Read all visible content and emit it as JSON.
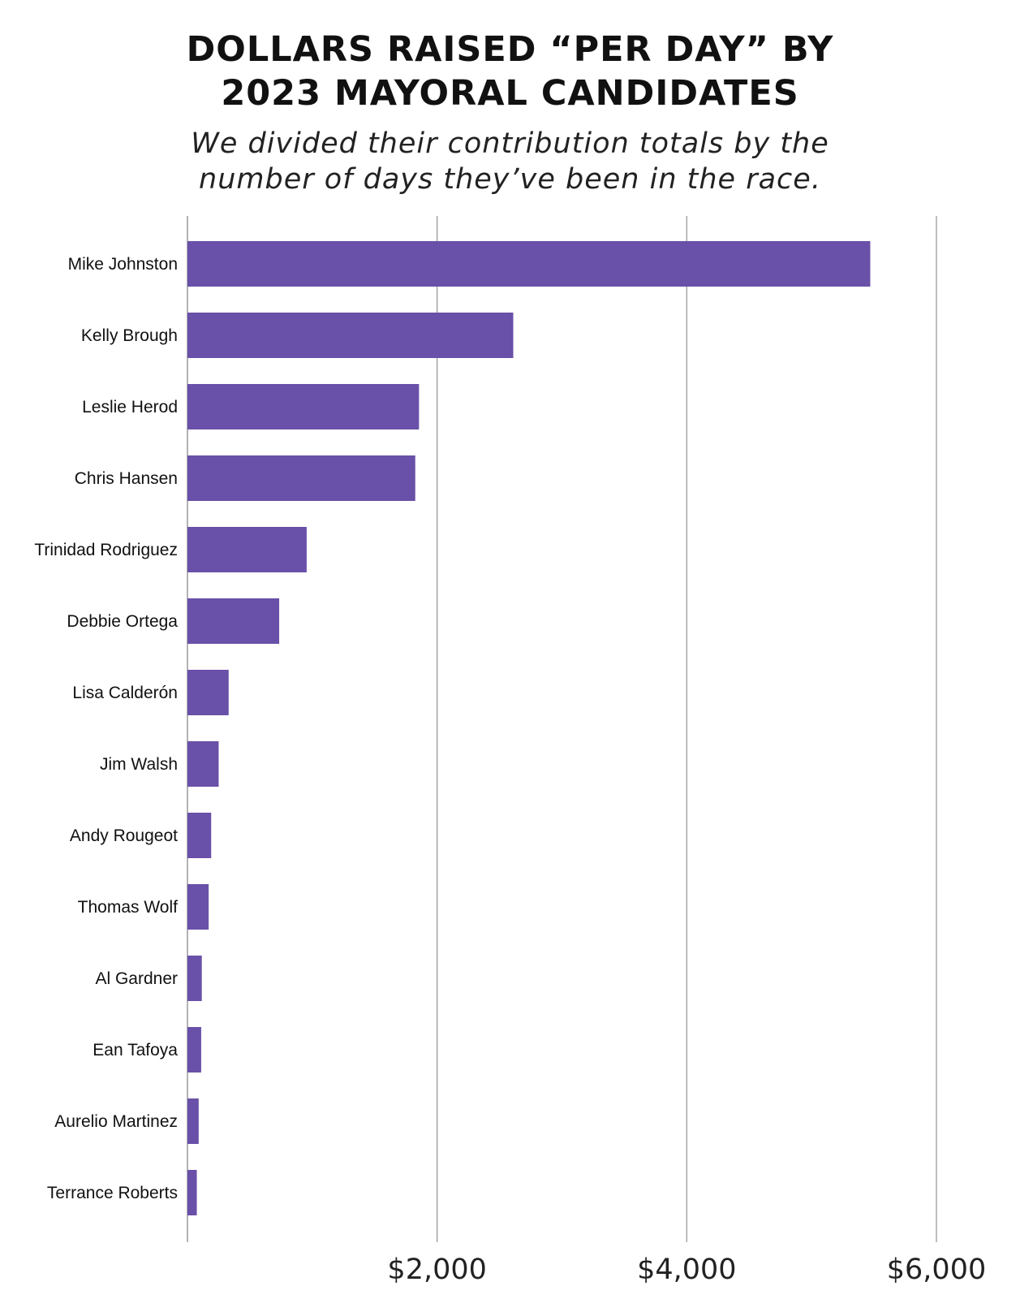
{
  "chart_data": {
    "type": "bar",
    "orientation": "horizontal",
    "title": "DOLLARS RAISED “PER DAY” BY\n2023 MAYORAL CANDIDATES",
    "subtitle": "We divided their contribution totals by the\nnumber of days they’ve been in the race.",
    "xlabel": "",
    "ylabel": "",
    "xlim": [
      0,
      6000
    ],
    "xticks": [
      0,
      2000,
      4000,
      6000
    ],
    "xtick_labels": [
      "",
      "$2,000",
      "$4,000",
      "$6,000"
    ],
    "grid": true,
    "bar_color": "#6950a8",
    "categories": [
      "Mike Johnston",
      "Kelly Brough",
      "Leslie Herod",
      "Chris Hansen",
      "Trinidad Rodriguez",
      "Debbie Ortega",
      "Lisa Calderón",
      "Jim Walsh",
      "Andy Rougeot",
      "Thomas Wolf",
      "Al Gardner",
      "Ean Tafoya",
      "Aurelio Martinez",
      "Terrance Roberts"
    ],
    "values": [
      5470,
      2610,
      1855,
      1825,
      955,
      735,
      330,
      250,
      190,
      170,
      115,
      110,
      90,
      75
    ]
  }
}
